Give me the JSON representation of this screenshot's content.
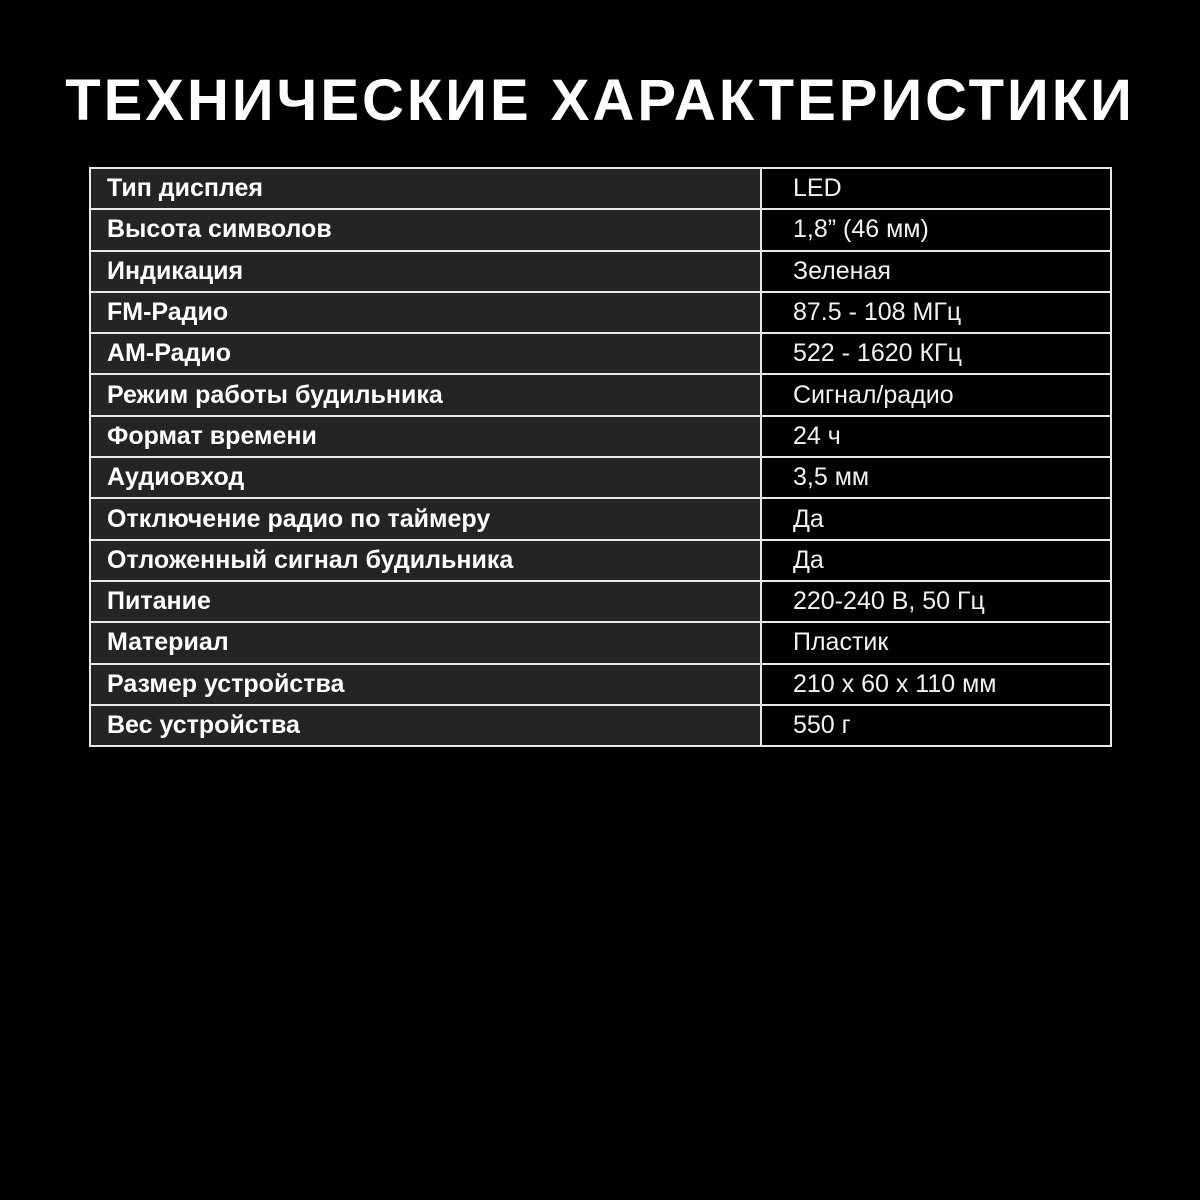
{
  "title": "ТЕХНИЧЕСКИЕ ХАРАКТЕРИСТИКИ",
  "specs": [
    {
      "label": "Тип дисплея",
      "value": "LED"
    },
    {
      "label": "Высота символов",
      "value": "1,8” (46 мм)"
    },
    {
      "label": "Индикация",
      "value": "Зеленая"
    },
    {
      "label": "FM-Радио",
      "value": "87.5 - 108 МГц"
    },
    {
      "label": "AM-Радио",
      "value": "522 - 1620 КГц"
    },
    {
      "label": "Режим работы будильника",
      "value": "Сигнал/радио"
    },
    {
      "label": "Формат времени",
      "value": "24 ч"
    },
    {
      "label": "Аудиовход",
      "value": "3,5 мм"
    },
    {
      "label": "Отключение радио по таймеру",
      "value": "Да"
    },
    {
      "label": "Отложенный сигнал будильника",
      "value": "Да"
    },
    {
      "label": "Питание",
      "value": "220-240 В, 50 Гц"
    },
    {
      "label": "Материал",
      "value": "Пластик"
    },
    {
      "label": "Размер устройства",
      "value": "210 x 60 x 110 мм"
    },
    {
      "label": "Вес устройства",
      "value": "550 г"
    }
  ]
}
